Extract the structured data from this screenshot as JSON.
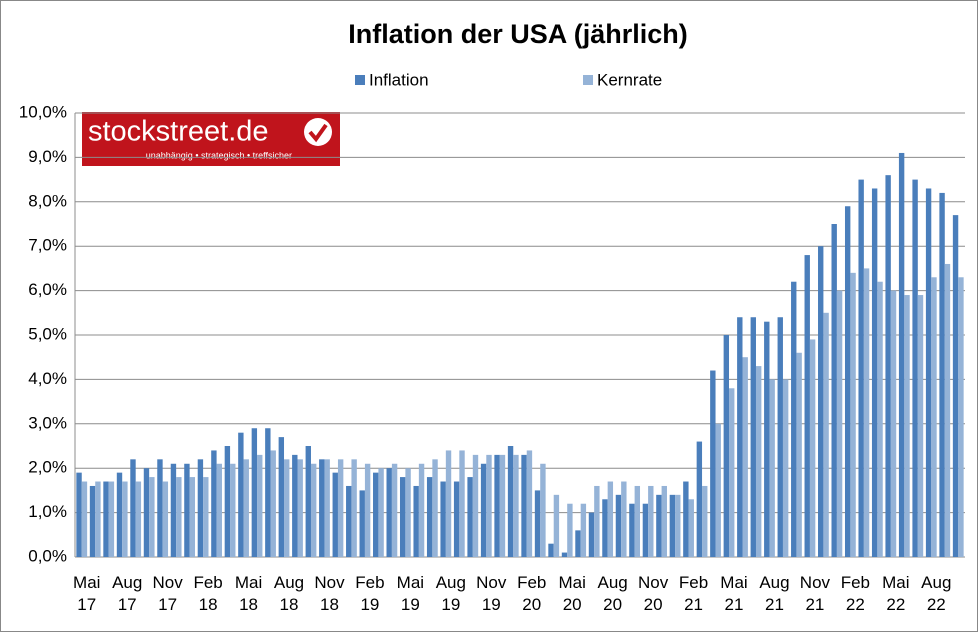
{
  "chart_data": {
    "type": "bar",
    "title": "Inflation der USA (jährlich)",
    "categories": [
      "Mai 17",
      null,
      null,
      "Aug 17",
      null,
      null,
      "Nov 17",
      null,
      null,
      "Feb 18",
      null,
      null,
      "Mai 18",
      null,
      null,
      "Aug 18",
      null,
      null,
      "Nov 18",
      null,
      null,
      "Feb 19",
      null,
      null,
      "Mai 19",
      null,
      null,
      "Aug 19",
      null,
      null,
      "Nov 19",
      null,
      null,
      "Feb 20",
      null,
      null,
      "Mai 20",
      null,
      null,
      "Aug 20",
      null,
      null,
      "Nov 20",
      null,
      null,
      "Feb 21",
      null,
      null,
      "Mai 21",
      null,
      null,
      "Aug 21",
      null,
      null,
      "Nov 21",
      null,
      null,
      "Feb 22",
      null,
      null,
      "Mai 22",
      null,
      null,
      "Aug 22",
      null,
      null
    ],
    "series": [
      {
        "name": "Inflation",
        "color": "#4a7ebb",
        "values": [
          1.9,
          1.6,
          1.7,
          1.9,
          2.2,
          2.0,
          2.2,
          2.1,
          2.1,
          2.2,
          2.4,
          2.5,
          2.8,
          2.9,
          2.9,
          2.7,
          2.3,
          2.5,
          2.2,
          1.9,
          1.6,
          1.5,
          1.9,
          2.0,
          1.8,
          1.6,
          1.8,
          1.7,
          1.7,
          1.8,
          2.1,
          2.3,
          2.5,
          2.3,
          1.5,
          0.3,
          0.1,
          0.6,
          1.0,
          1.3,
          1.4,
          1.2,
          1.2,
          1.4,
          1.4,
          1.7,
          2.6,
          4.2,
          5.0,
          5.4,
          5.4,
          5.3,
          5.4,
          6.2,
          6.8,
          7.0,
          7.5,
          7.9,
          8.5,
          8.3,
          8.6,
          9.1,
          8.5,
          8.3,
          8.2,
          7.7
        ]
      },
      {
        "name": "Kernrate",
        "color": "#95b3d7",
        "values": [
          1.7,
          1.7,
          1.7,
          1.7,
          1.7,
          1.8,
          1.7,
          1.8,
          1.8,
          1.8,
          2.1,
          2.1,
          2.2,
          2.3,
          2.4,
          2.2,
          2.2,
          2.1,
          2.2,
          2.2,
          2.2,
          2.1,
          2.0,
          2.1,
          2.0,
          2.1,
          2.2,
          2.4,
          2.4,
          2.3,
          2.3,
          2.3,
          2.3,
          2.4,
          2.1,
          1.4,
          1.2,
          1.2,
          1.6,
          1.7,
          1.7,
          1.6,
          1.6,
          1.6,
          1.4,
          1.3,
          1.6,
          3.0,
          3.8,
          4.5,
          4.3,
          4.0,
          4.0,
          4.6,
          4.9,
          5.5,
          6.0,
          6.4,
          6.5,
          6.2,
          6.0,
          5.9,
          5.9,
          6.3,
          6.6,
          6.3
        ]
      }
    ],
    "ylim": [
      0,
      10
    ],
    "yticks": [
      {
        "value": 0,
        "label": "0,0%"
      },
      {
        "value": 1,
        "label": "1,0%"
      },
      {
        "value": 2,
        "label": "2,0%"
      },
      {
        "value": 3,
        "label": "3,0%"
      },
      {
        "value": 4,
        "label": "4,0%"
      },
      {
        "value": 5,
        "label": "5,0%"
      },
      {
        "value": 6,
        "label": "6,0%"
      },
      {
        "value": 7,
        "label": "7,0%"
      },
      {
        "value": 8,
        "label": "8,0%"
      },
      {
        "value": 9,
        "label": "9,0%"
      },
      {
        "value": 10,
        "label": "10,0%"
      }
    ],
    "grid": true,
    "legend": "top"
  },
  "logo": {
    "name": "stockstreet.de",
    "slogan": "unabhängig • strategisch • treffsicher"
  }
}
